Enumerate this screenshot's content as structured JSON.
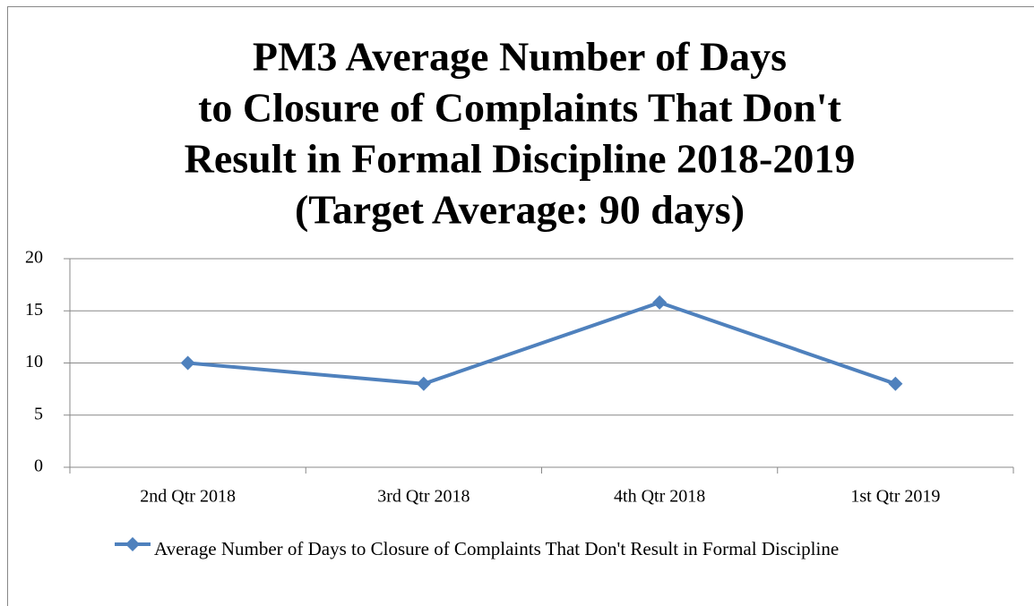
{
  "chart_data": {
    "type": "line",
    "title": [
      "PM3 Average Number of Days",
      "to Closure of Complaints That Don't",
      "Result in Formal Discipline 2018-2019",
      "(Target Average: 90 days)"
    ],
    "categories": [
      "2nd Qtr 2018",
      "3rd Qtr 2018",
      "4th Qtr 2018",
      "1st Qtr 2019"
    ],
    "series": [
      {
        "name": "Average Number of Days to Closure of Complaints That Don't Result in Formal Discipline",
        "color": "#4f81bd",
        "values": [
          10,
          8,
          15.8,
          8
        ]
      }
    ],
    "ylim": [
      0,
      20
    ],
    "yticks": [
      0,
      5,
      10,
      15,
      20
    ],
    "grid": true,
    "legend": "bottom"
  }
}
